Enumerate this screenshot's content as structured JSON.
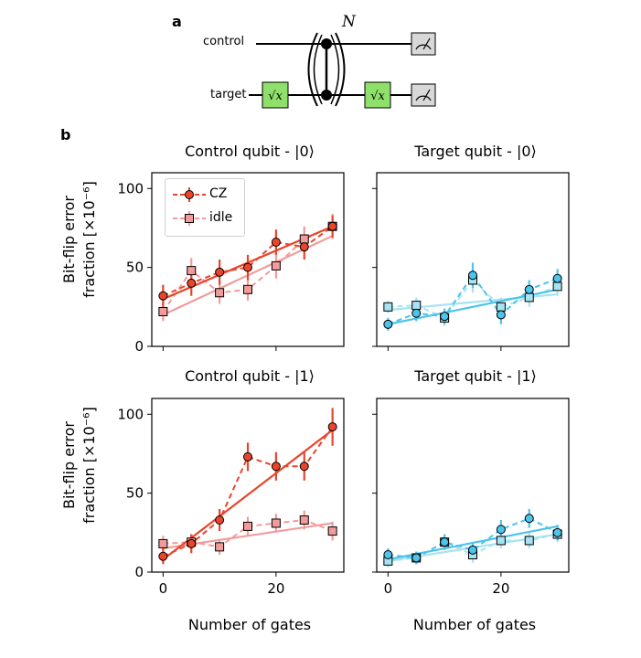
{
  "panel_a": {
    "label": "a",
    "control_label": "control",
    "target_label": "target",
    "sqrt_x": "√x",
    "repeat_label": "N"
  },
  "panel_b": {
    "label": "b",
    "y_axis_title_line1": "Bit-flip error",
    "y_axis_title_line2": "fraction [×10⁻⁶]",
    "x_axis_title": "Number of gates",
    "legend": [
      {
        "label": "CZ",
        "color": "#e8452c",
        "marker": "circle"
      },
      {
        "label": "idle",
        "color": "#f19c9b",
        "marker": "square"
      }
    ]
  },
  "colors": {
    "cz": "#e8452c",
    "idle": "#f19c9b",
    "target_circle": "#4dc4ea",
    "target_square": "#a8e3f2",
    "gate_green": "#8ee06a",
    "meter_gray": "#d8d8d8"
  },
  "chart_data": [
    {
      "type": "line",
      "title": "Control qubit - |0⟩",
      "xlabel": "",
      "ylabel": "Bit-flip error fraction [×10⁻⁶]",
      "xlim": [
        -2,
        32
      ],
      "ylim": [
        0,
        110
      ],
      "xticks": [
        0,
        20
      ],
      "yticks": [
        0,
        50,
        100
      ],
      "series": [
        {
          "name": "CZ",
          "marker": "circle",
          "x": [
            0,
            5,
            10,
            15,
            20,
            25,
            30
          ],
          "y": [
            32,
            40,
            47,
            50,
            66,
            63,
            76
          ],
          "err": [
            7,
            8,
            8,
            8,
            8,
            8,
            7
          ],
          "fit": [
            30,
            76
          ]
        },
        {
          "name": "idle",
          "marker": "square",
          "x": [
            0,
            5,
            10,
            15,
            20,
            25,
            30
          ],
          "y": [
            22,
            48,
            34,
            36,
            51,
            68,
            76
          ],
          "err": [
            6,
            8,
            7,
            7,
            8,
            8,
            8
          ],
          "fit": [
            20,
            70
          ]
        }
      ]
    },
    {
      "type": "line",
      "title": "Target qubit - |0⟩",
      "xlabel": "",
      "ylabel": "",
      "xlim": [
        -2,
        32
      ],
      "ylim": [
        0,
        110
      ],
      "xticks": [
        0,
        20
      ],
      "yticks": [
        0,
        50,
        100
      ],
      "series": [
        {
          "name": "CZ",
          "marker": "circle",
          "x": [
            0,
            5,
            10,
            15,
            20,
            25,
            30
          ],
          "y": [
            14,
            21,
            19,
            45,
            20,
            36,
            43
          ],
          "err": [
            4,
            5,
            5,
            8,
            6,
            6,
            6
          ],
          "fit": [
            14,
            36
          ]
        },
        {
          "name": "idle",
          "marker": "square",
          "x": [
            0,
            5,
            10,
            15,
            20,
            25,
            30
          ],
          "y": [
            25,
            26,
            18,
            42,
            25,
            31,
            38
          ],
          "err": [
            4,
            5,
            5,
            8,
            6,
            6,
            6
          ],
          "fit": [
            23,
            33
          ]
        }
      ]
    },
    {
      "type": "line",
      "title": "Control qubit - |1⟩",
      "xlabel": "Number of gates",
      "ylabel": "Bit-flip error fraction [×10⁻⁶]",
      "xlim": [
        -2,
        32
      ],
      "ylim": [
        0,
        110
      ],
      "xticks": [
        0,
        20
      ],
      "yticks": [
        0,
        50,
        100
      ],
      "series": [
        {
          "name": "CZ",
          "marker": "circle",
          "x": [
            0,
            5,
            10,
            15,
            20,
            25,
            30
          ],
          "y": [
            10,
            18,
            33,
            73,
            67,
            67,
            92
          ],
          "err": [
            5,
            6,
            7,
            9,
            9,
            9,
            12
          ],
          "fit": [
            8,
            90
          ]
        },
        {
          "name": "idle",
          "marker": "square",
          "x": [
            0,
            5,
            10,
            15,
            20,
            25,
            30
          ],
          "y": [
            18,
            19,
            16,
            29,
            31,
            33,
            26
          ],
          "err": [
            5,
            5,
            5,
            6,
            6,
            6,
            6
          ],
          "fit": [
            15,
            31
          ]
        }
      ]
    },
    {
      "type": "line",
      "title": "Target qubit - |1⟩",
      "xlabel": "Number of gates",
      "ylabel": "",
      "xlim": [
        -2,
        32
      ],
      "ylim": [
        0,
        110
      ],
      "xticks": [
        0,
        20
      ],
      "yticks": [
        0,
        50,
        100
      ],
      "series": [
        {
          "name": "CZ",
          "marker": "circle",
          "x": [
            0,
            5,
            10,
            15,
            20,
            25,
            30
          ],
          "y": [
            11,
            9,
            19,
            14,
            27,
            34,
            25
          ],
          "err": [
            4,
            4,
            5,
            5,
            6,
            6,
            5
          ],
          "fit": [
            8,
            29
          ]
        },
        {
          "name": "idle",
          "marker": "square",
          "x": [
            0,
            5,
            10,
            15,
            20,
            25,
            30
          ],
          "y": [
            7,
            9,
            19,
            11,
            20,
            20,
            24
          ],
          "err": [
            4,
            4,
            5,
            5,
            5,
            5,
            5
          ],
          "fit": [
            7,
            24
          ]
        }
      ]
    }
  ]
}
